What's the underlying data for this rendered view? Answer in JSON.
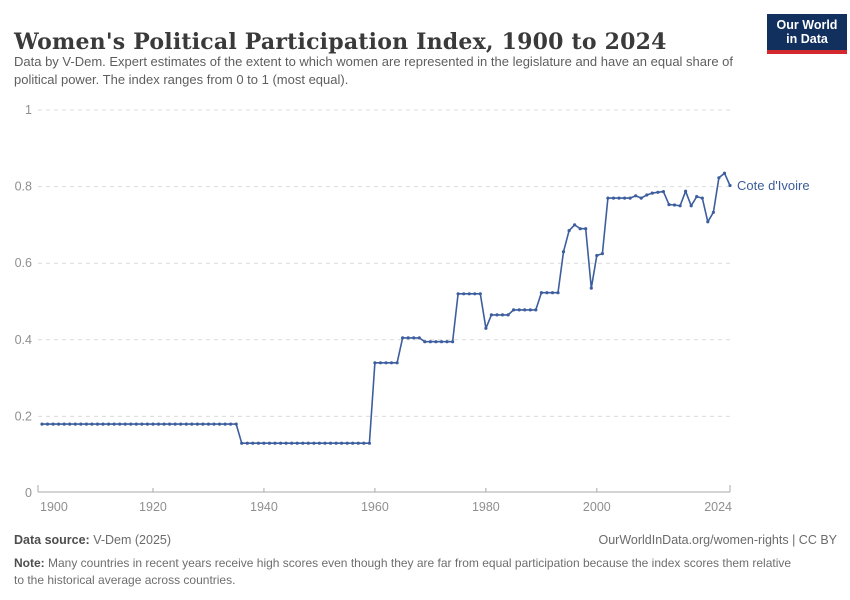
{
  "header": {
    "title": "Women's Political Participation Index, 1900 to 2024",
    "subtitle": "Data by V-Dem. Expert estimates of the extent to which women are represented in the legislature and have an equal share of political power. The index ranges from 0 to 1 (most equal).",
    "logo": {
      "line1": "Our World",
      "line2": "in Data"
    }
  },
  "footer": {
    "source_label": "Data source:",
    "source_text": " V-Dem (2025)",
    "link_text": "OurWorldInData.org/women-rights | CC BY",
    "note_label": "Note:",
    "note_text": " Many countries in recent years receive high scores even though they are far from equal participation because the index scores them relative to the historical average across countries."
  },
  "colors": {
    "line": "#3d5e9e",
    "entity_label": "#3a5c9b",
    "grid": "#dcdcdc",
    "axis": "#a8a8a8",
    "tick_text": "#8f8f8f",
    "logo_bg": "#12305e",
    "logo_stripe": "#d2282e"
  },
  "chart_data": {
    "type": "line",
    "title": "Women's Political Participation Index, 1900 to 2024",
    "entity": "Cote d'Ivoire",
    "xlabel": "",
    "ylabel": "",
    "xlim": [
      1900,
      2024
    ],
    "ylim": [
      0,
      1
    ],
    "x_ticks": [
      1900,
      1920,
      1940,
      1960,
      1980,
      2000,
      2024
    ],
    "y_ticks": [
      0,
      0.2,
      0.4,
      0.6,
      0.8,
      1
    ],
    "grid": "horizontal-dashed",
    "legend_position": "end-of-line-label",
    "series": [
      {
        "name": "Cote d'Ivoire",
        "points": [
          [
            1900,
            0.18
          ],
          [
            1901,
            0.18
          ],
          [
            1902,
            0.18
          ],
          [
            1903,
            0.18
          ],
          [
            1904,
            0.18
          ],
          [
            1905,
            0.18
          ],
          [
            1906,
            0.18
          ],
          [
            1907,
            0.18
          ],
          [
            1908,
            0.18
          ],
          [
            1909,
            0.18
          ],
          [
            1910,
            0.18
          ],
          [
            1911,
            0.18
          ],
          [
            1912,
            0.18
          ],
          [
            1913,
            0.18
          ],
          [
            1914,
            0.18
          ],
          [
            1915,
            0.18
          ],
          [
            1916,
            0.18
          ],
          [
            1917,
            0.18
          ],
          [
            1918,
            0.18
          ],
          [
            1919,
            0.18
          ],
          [
            1920,
            0.18
          ],
          [
            1921,
            0.18
          ],
          [
            1922,
            0.18
          ],
          [
            1923,
            0.18
          ],
          [
            1924,
            0.18
          ],
          [
            1925,
            0.18
          ],
          [
            1926,
            0.18
          ],
          [
            1927,
            0.18
          ],
          [
            1928,
            0.18
          ],
          [
            1929,
            0.18
          ],
          [
            1930,
            0.18
          ],
          [
            1931,
            0.18
          ],
          [
            1932,
            0.18
          ],
          [
            1933,
            0.18
          ],
          [
            1934,
            0.18
          ],
          [
            1935,
            0.18
          ],
          [
            1936,
            0.13
          ],
          [
            1937,
            0.13
          ],
          [
            1938,
            0.13
          ],
          [
            1939,
            0.13
          ],
          [
            1940,
            0.13
          ],
          [
            1941,
            0.13
          ],
          [
            1942,
            0.13
          ],
          [
            1943,
            0.13
          ],
          [
            1944,
            0.13
          ],
          [
            1945,
            0.13
          ],
          [
            1946,
            0.13
          ],
          [
            1947,
            0.13
          ],
          [
            1948,
            0.13
          ],
          [
            1949,
            0.13
          ],
          [
            1950,
            0.13
          ],
          [
            1951,
            0.13
          ],
          [
            1952,
            0.13
          ],
          [
            1953,
            0.13
          ],
          [
            1954,
            0.13
          ],
          [
            1955,
            0.13
          ],
          [
            1956,
            0.13
          ],
          [
            1957,
            0.13
          ],
          [
            1958,
            0.13
          ],
          [
            1959,
            0.13
          ],
          [
            1960,
            0.34
          ],
          [
            1961,
            0.34
          ],
          [
            1962,
            0.34
          ],
          [
            1963,
            0.34
          ],
          [
            1964,
            0.34
          ],
          [
            1965,
            0.405
          ],
          [
            1966,
            0.405
          ],
          [
            1967,
            0.405
          ],
          [
            1968,
            0.405
          ],
          [
            1969,
            0.395
          ],
          [
            1970,
            0.395
          ],
          [
            1971,
            0.395
          ],
          [
            1972,
            0.395
          ],
          [
            1973,
            0.395
          ],
          [
            1974,
            0.395
          ],
          [
            1975,
            0.52
          ],
          [
            1976,
            0.52
          ],
          [
            1977,
            0.52
          ],
          [
            1978,
            0.52
          ],
          [
            1979,
            0.52
          ],
          [
            1980,
            0.43
          ],
          [
            1981,
            0.465
          ],
          [
            1982,
            0.465
          ],
          [
            1983,
            0.465
          ],
          [
            1984,
            0.465
          ],
          [
            1985,
            0.478
          ],
          [
            1986,
            0.478
          ],
          [
            1987,
            0.478
          ],
          [
            1988,
            0.478
          ],
          [
            1989,
            0.478
          ],
          [
            1990,
            0.523
          ],
          [
            1991,
            0.523
          ],
          [
            1992,
            0.523
          ],
          [
            1993,
            0.523
          ],
          [
            1994,
            0.63
          ],
          [
            1995,
            0.685
          ],
          [
            1996,
            0.7
          ],
          [
            1997,
            0.69
          ],
          [
            1998,
            0.69
          ],
          [
            1999,
            0.535
          ],
          [
            2000,
            0.62
          ],
          [
            2001,
            0.625
          ],
          [
            2002,
            0.77
          ],
          [
            2003,
            0.77
          ],
          [
            2004,
            0.77
          ],
          [
            2005,
            0.77
          ],
          [
            2006,
            0.77
          ],
          [
            2007,
            0.776
          ],
          [
            2008,
            0.77
          ],
          [
            2009,
            0.778
          ],
          [
            2010,
            0.783
          ],
          [
            2011,
            0.785
          ],
          [
            2012,
            0.787
          ],
          [
            2013,
            0.753
          ],
          [
            2014,
            0.752
          ],
          [
            2015,
            0.75
          ],
          [
            2016,
            0.788
          ],
          [
            2017,
            0.75
          ],
          [
            2018,
            0.774
          ],
          [
            2019,
            0.77
          ],
          [
            2020,
            0.708
          ],
          [
            2021,
            0.733
          ],
          [
            2022,
            0.823
          ],
          [
            2023,
            0.835
          ],
          [
            2024,
            0.803
          ]
        ]
      }
    ]
  }
}
